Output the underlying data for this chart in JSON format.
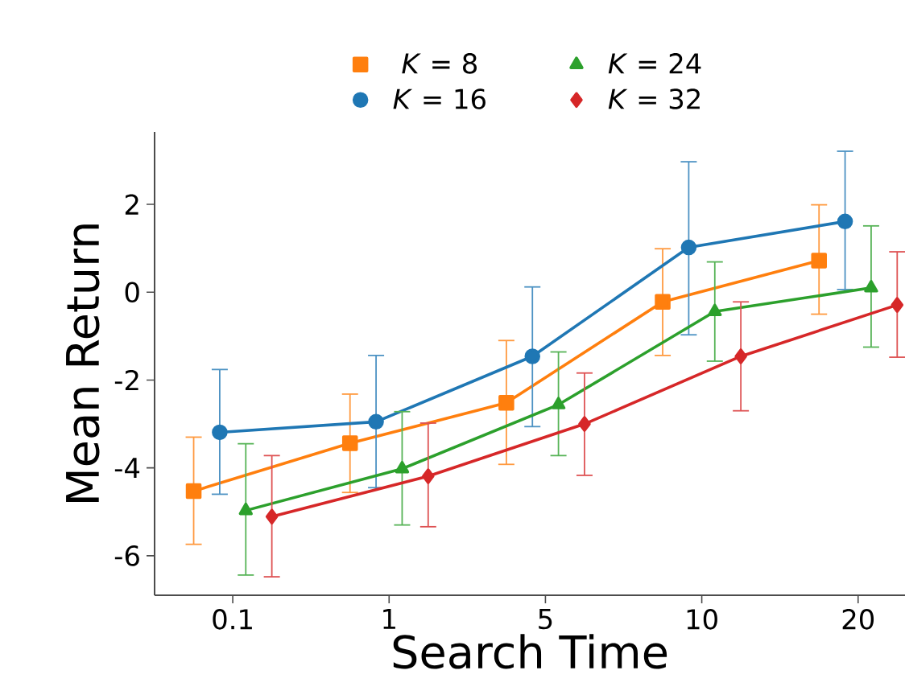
{
  "chart_data": {
    "type": "line",
    "xlabel": "Search Time",
    "ylabel": "Mean Return",
    "categories": [
      "0.1",
      "1",
      "5",
      "10",
      "20"
    ],
    "ylim": [
      -6.9,
      3.65
    ],
    "yticks": [
      -6,
      -4,
      -2,
      0,
      2
    ],
    "grid": false,
    "legend": "top",
    "series": [
      {
        "name": "*K* = 8",
        "color": "#ff7f0e",
        "marker": "square",
        "values": [
          -4.53,
          -3.44,
          -2.52,
          -0.22,
          0.72
        ],
        "errors": [
          [
            -5.74,
            -3.3
          ],
          [
            -4.56,
            -2.32
          ],
          [
            -3.92,
            -1.1
          ],
          [
            -1.44,
            0.99
          ],
          [
            -0.5,
            1.99
          ]
        ]
      },
      {
        "name": "*K* = 16",
        "color": "#1f77b4",
        "marker": "circle",
        "values": [
          -3.19,
          -2.95,
          -1.46,
          1.02,
          1.61
        ],
        "errors": [
          [
            -4.6,
            -1.76
          ],
          [
            -4.45,
            -1.44
          ],
          [
            -3.06,
            0.12
          ],
          [
            -0.97,
            2.97
          ],
          [
            0.06,
            3.21
          ]
        ]
      },
      {
        "name": "*K* = 24",
        "color": "#2ca02c",
        "marker": "triangle",
        "values": [
          -4.97,
          -4.02,
          -2.56,
          -0.44,
          0.1
        ],
        "errors": [
          [
            -6.44,
            -3.45
          ],
          [
            -5.3,
            -2.72
          ],
          [
            -3.72,
            -1.36
          ],
          [
            -1.57,
            0.69
          ],
          [
            -1.25,
            1.51
          ]
        ]
      },
      {
        "name": "*K* = 32",
        "color": "#d62728",
        "marker": "diamond",
        "values": [
          -5.11,
          -4.19,
          -3.0,
          -1.46,
          -0.29
        ],
        "errors": [
          [
            -6.48,
            -3.72
          ],
          [
            -5.34,
            -2.98
          ],
          [
            -4.17,
            -1.84
          ],
          [
            -2.7,
            -0.22
          ],
          [
            -1.48,
            0.92
          ]
        ]
      }
    ]
  }
}
